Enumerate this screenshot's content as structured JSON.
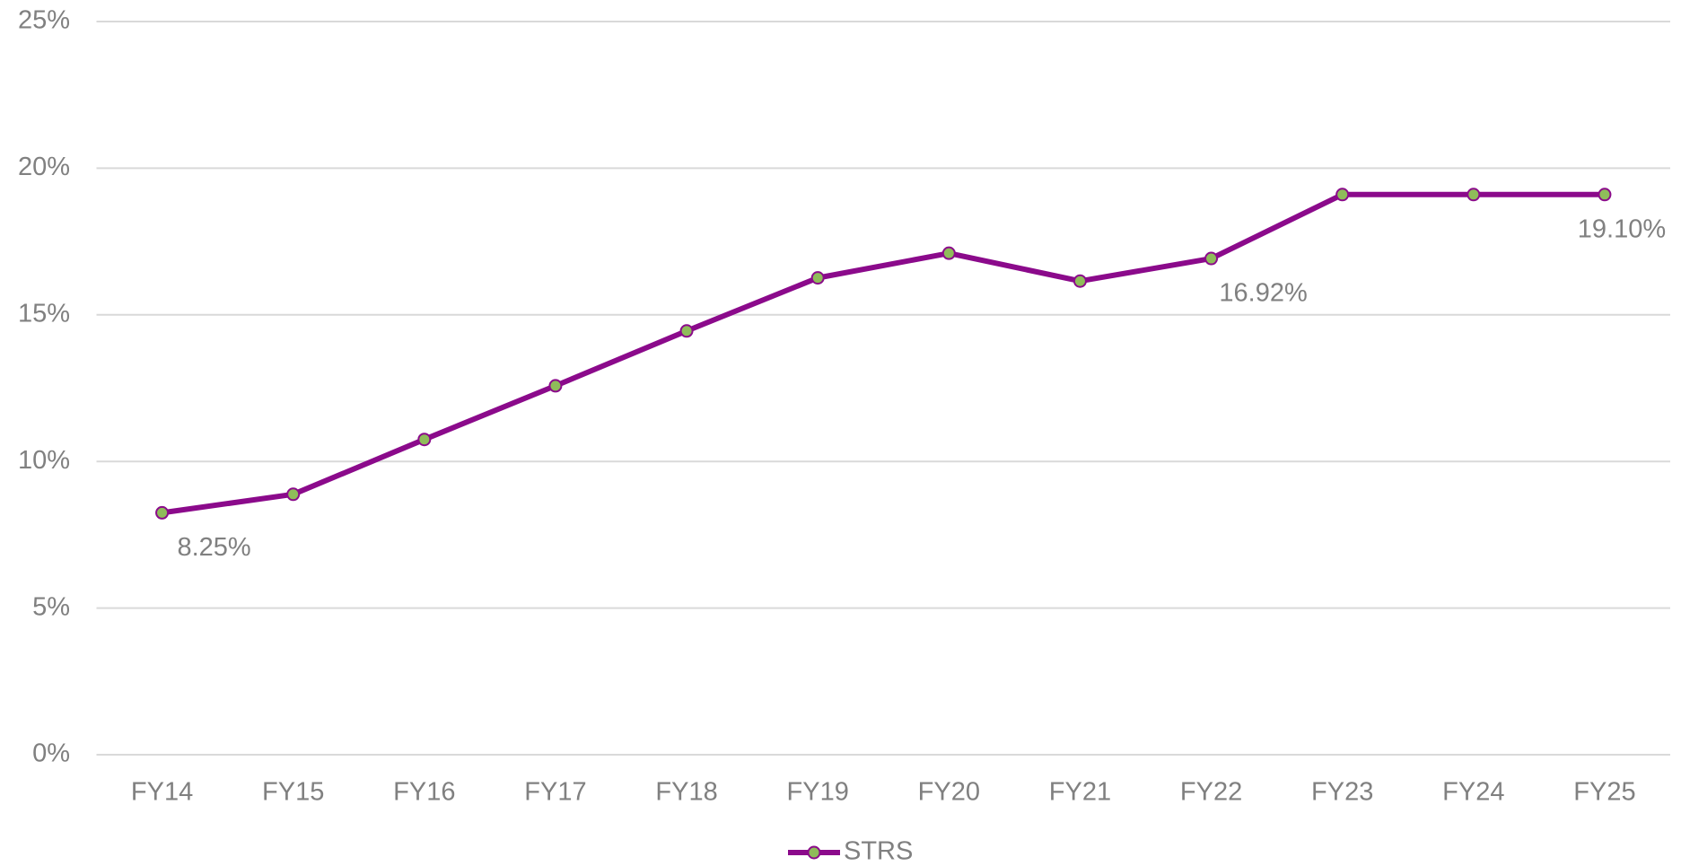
{
  "chart_data": {
    "type": "line",
    "categories": [
      "FY14",
      "FY15",
      "FY16",
      "FY17",
      "FY18",
      "FY19",
      "FY20",
      "FY21",
      "FY22",
      "FY23",
      "FY24",
      "FY25"
    ],
    "series": [
      {
        "name": "STRS",
        "color": "#8b0a8b",
        "marker_color": "#8fbc5a",
        "values": [
          8.25,
          8.88,
          10.75,
          12.58,
          14.45,
          16.26,
          17.1,
          16.15,
          16.92,
          19.1,
          19.1,
          19.1
        ],
        "value_labels": [
          "8.25%",
          null,
          null,
          null,
          null,
          null,
          null,
          null,
          "16.92%",
          null,
          null,
          "19.10%"
        ]
      }
    ],
    "ylim": [
      0,
      25
    ],
    "yticks": [
      {
        "value": 0,
        "label": "0%"
      },
      {
        "value": 5,
        "label": "5%"
      },
      {
        "value": 10,
        "label": "10%"
      },
      {
        "value": 15,
        "label": "15%"
      },
      {
        "value": 20,
        "label": "20%"
      },
      {
        "value": 25,
        "label": "25%"
      }
    ],
    "grid": true,
    "legend": "bottom"
  }
}
